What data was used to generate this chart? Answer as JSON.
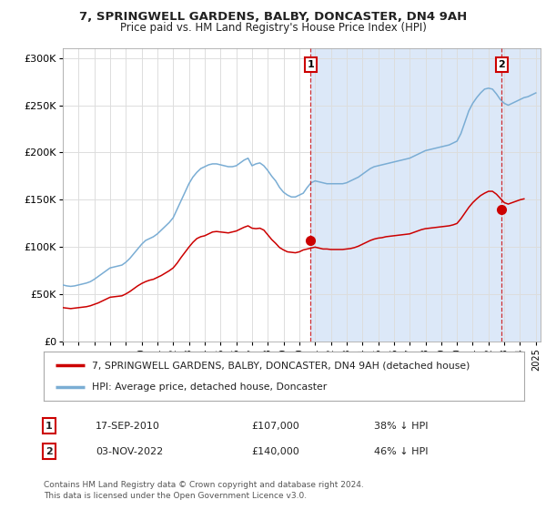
{
  "title": "7, SPRINGWELL GARDENS, BALBY, DONCASTER, DN4 9AH",
  "subtitle": "Price paid vs. HM Land Registry's House Price Index (HPI)",
  "bg_color": "#ffffff",
  "plot_bg_color": "#ffffff",
  "shaded_bg_color": "#dce8f8",
  "grid_color": "#dddddd",
  "red_line_color": "#cc0000",
  "blue_line_color": "#7aadd4",
  "legend_label_red": "7, SPRINGWELL GARDENS, BALBY, DONCASTER, DN4 9AH (detached house)",
  "legend_label_blue": "HPI: Average price, detached house, Doncaster",
  "table_row1": [
    "1",
    "17-SEP-2010",
    "£107,000",
    "38% ↓ HPI"
  ],
  "table_row2": [
    "2",
    "03-NOV-2022",
    "£140,000",
    "46% ↓ HPI"
  ],
  "footer": "Contains HM Land Registry data © Crown copyright and database right 2024.\nThis data is licensed under the Open Government Licence v3.0.",
  "ylim": [
    0,
    310000
  ],
  "yticks": [
    0,
    50000,
    100000,
    150000,
    200000,
    250000,
    300000
  ],
  "ytick_labels": [
    "£0",
    "£50K",
    "£100K",
    "£150K",
    "£200K",
    "£250K",
    "£300K"
  ],
  "hpi_data_years": [
    1995.0,
    1995.25,
    1995.5,
    1995.75,
    1996.0,
    1996.25,
    1996.5,
    1996.75,
    1997.0,
    1997.25,
    1997.5,
    1997.75,
    1998.0,
    1998.25,
    1998.5,
    1998.75,
    1999.0,
    1999.25,
    1999.5,
    1999.75,
    2000.0,
    2000.25,
    2000.5,
    2000.75,
    2001.0,
    2001.25,
    2001.5,
    2001.75,
    2002.0,
    2002.25,
    2002.5,
    2002.75,
    2003.0,
    2003.25,
    2003.5,
    2003.75,
    2004.0,
    2004.25,
    2004.5,
    2004.75,
    2005.0,
    2005.25,
    2005.5,
    2005.75,
    2006.0,
    2006.25,
    2006.5,
    2006.75,
    2007.0,
    2007.25,
    2007.5,
    2007.75,
    2008.0,
    2008.25,
    2008.5,
    2008.75,
    2009.0,
    2009.25,
    2009.5,
    2009.75,
    2010.0,
    2010.25,
    2010.5,
    2010.75,
    2011.0,
    2011.25,
    2011.5,
    2011.75,
    2012.0,
    2012.25,
    2012.5,
    2012.75,
    2013.0,
    2013.25,
    2013.5,
    2013.75,
    2014.0,
    2014.25,
    2014.5,
    2014.75,
    2015.0,
    2015.25,
    2015.5,
    2015.75,
    2016.0,
    2016.25,
    2016.5,
    2016.75,
    2017.0,
    2017.25,
    2017.5,
    2017.75,
    2018.0,
    2018.25,
    2018.5,
    2018.75,
    2019.0,
    2019.25,
    2019.5,
    2019.75,
    2020.0,
    2020.25,
    2020.5,
    2020.75,
    2021.0,
    2021.25,
    2021.5,
    2021.75,
    2022.0,
    2022.25,
    2022.5,
    2022.75,
    2023.0,
    2023.25,
    2023.5,
    2023.75,
    2024.0,
    2024.25,
    2024.5,
    2024.75,
    2025.0
  ],
  "hpi_data_values": [
    60000,
    59000,
    58500,
    59000,
    60000,
    61000,
    62000,
    63500,
    66000,
    69000,
    72000,
    75000,
    78000,
    79000,
    80000,
    81000,
    84000,
    88000,
    93000,
    98000,
    103000,
    107000,
    109000,
    111000,
    114000,
    118000,
    122000,
    126000,
    131000,
    140000,
    149000,
    158000,
    167000,
    174000,
    179000,
    183000,
    185000,
    187000,
    188000,
    188000,
    187000,
    186000,
    185000,
    185000,
    186000,
    189000,
    192000,
    194000,
    186000,
    188000,
    189000,
    186000,
    181000,
    175000,
    170000,
    163000,
    158000,
    155000,
    153000,
    153000,
    155000,
    157000,
    163000,
    168000,
    170000,
    169000,
    168000,
    167000,
    167000,
    167000,
    167000,
    167000,
    168000,
    170000,
    172000,
    174000,
    177000,
    180000,
    183000,
    185000,
    186000,
    187000,
    188000,
    189000,
    190000,
    191000,
    192000,
    193000,
    194000,
    196000,
    198000,
    200000,
    202000,
    203000,
    204000,
    205000,
    206000,
    207000,
    208000,
    210000,
    212000,
    220000,
    232000,
    244000,
    252000,
    258000,
    263000,
    267000,
    268000,
    267000,
    262000,
    256000,
    252000,
    250000,
    252000,
    254000,
    256000,
    258000,
    259000,
    261000,
    263000
  ],
  "prop_data_years": [
    1995.0,
    1995.25,
    1995.5,
    1995.75,
    1996.0,
    1996.25,
    1996.5,
    1996.75,
    1997.0,
    1997.25,
    1997.5,
    1997.75,
    1998.0,
    1998.25,
    1998.5,
    1998.75,
    1999.0,
    1999.25,
    1999.5,
    1999.75,
    2000.0,
    2000.25,
    2000.5,
    2000.75,
    2001.0,
    2001.25,
    2001.5,
    2001.75,
    2002.0,
    2002.25,
    2002.5,
    2002.75,
    2003.0,
    2003.25,
    2003.5,
    2003.75,
    2004.0,
    2004.25,
    2004.5,
    2004.75,
    2005.0,
    2005.25,
    2005.5,
    2005.75,
    2006.0,
    2006.25,
    2006.5,
    2006.75,
    2007.0,
    2007.25,
    2007.5,
    2007.75,
    2008.0,
    2008.25,
    2008.5,
    2008.75,
    2009.0,
    2009.25,
    2009.5,
    2009.75,
    2010.0,
    2010.25,
    2010.5,
    2010.75,
    2011.0,
    2011.25,
    2011.5,
    2011.75,
    2012.0,
    2012.25,
    2012.5,
    2012.75,
    2013.0,
    2013.25,
    2013.5,
    2013.75,
    2014.0,
    2014.25,
    2014.5,
    2014.75,
    2015.0,
    2015.25,
    2015.5,
    2015.75,
    2016.0,
    2016.25,
    2016.5,
    2016.75,
    2017.0,
    2017.25,
    2017.5,
    2017.75,
    2018.0,
    2018.25,
    2018.5,
    2018.75,
    2019.0,
    2019.25,
    2019.5,
    2019.75,
    2020.0,
    2020.25,
    2020.5,
    2020.75,
    2021.0,
    2021.25,
    2021.5,
    2021.75,
    2022.0,
    2022.25,
    2022.5,
    2022.75,
    2023.0,
    2023.25,
    2023.5,
    2023.75,
    2024.0,
    2024.25
  ],
  "prop_data_values": [
    36000,
    35500,
    35000,
    35500,
    36000,
    36500,
    37000,
    38000,
    39500,
    41000,
    43000,
    45000,
    47000,
    47500,
    48000,
    48500,
    50500,
    53000,
    56000,
    59000,
    61500,
    63500,
    65000,
    66000,
    68000,
    70000,
    72500,
    75000,
    78000,
    83000,
    89000,
    94500,
    100000,
    105000,
    109000,
    111000,
    112000,
    114000,
    116000,
    116500,
    116000,
    115500,
    115000,
    116000,
    117000,
    119000,
    121000,
    122500,
    120000,
    119500,
    120000,
    118000,
    113000,
    108000,
    104000,
    99500,
    97000,
    95000,
    94500,
    94000,
    95000,
    97000,
    98000,
    99000,
    100000,
    99000,
    98000,
    98000,
    97500,
    97500,
    97500,
    97500,
    98000,
    98500,
    99500,
    101000,
    103000,
    105000,
    107000,
    108500,
    109500,
    110000,
    111000,
    111500,
    112000,
    112500,
    113000,
    113500,
    114000,
    115500,
    117000,
    118500,
    119500,
    120000,
    120500,
    121000,
    121500,
    122000,
    122500,
    123500,
    125000,
    130000,
    136000,
    142000,
    147000,
    151000,
    154500,
    157000,
    159000,
    159000,
    156000,
    151500,
    147000,
    145500,
    147000,
    148500,
    150000,
    151000
  ],
  "sale1_x": 2010.71,
  "sale1_y": 107000,
  "sale2_x": 2022.84,
  "sale2_y": 140000,
  "xmin": 1995,
  "xmax": 2025.3
}
